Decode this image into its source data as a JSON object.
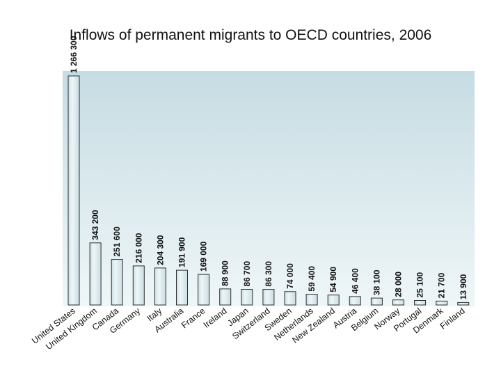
{
  "chart_data": {
    "type": "bar",
    "title": "Inflows of permanent migrants to OECD countries, 2006",
    "xlabel": "",
    "ylabel": "",
    "ylim": [
      0,
      1266300
    ],
    "categories": [
      "United States",
      "United Kingdom",
      "Canada",
      "Germany",
      "Italy",
      "Australia",
      "France",
      "Ireland",
      "Japan",
      "Switzerland",
      "Sweden",
      "Netherlands",
      "New Zealand",
      "Austria",
      "Belgium",
      "Norway",
      "Portugal",
      "Denmark",
      "Finland"
    ],
    "values": [
      1266300,
      343200,
      251600,
      216000,
      204300,
      191900,
      169000,
      88900,
      86700,
      86300,
      74000,
      59400,
      54900,
      46400,
      38100,
      28000,
      25100,
      21700,
      13900
    ],
    "value_labels": [
      "1 266 300",
      "343 200",
      "251 600",
      "216 000",
      "204 300",
      "191 900",
      "169 000",
      "88 900",
      "86 700",
      "86 300",
      "74 000",
      "59 400",
      "54 900",
      "46 400",
      "38 100",
      "28 000",
      "25 100",
      "21 700",
      "13 900"
    ]
  },
  "colors": {
    "bar": "#c9dde2",
    "bar_highlight": "#eef6f8",
    "bar_edge": "#2f2f2f",
    "bg_top": "#c6dce3",
    "bg_bottom": "#eff6f8"
  }
}
